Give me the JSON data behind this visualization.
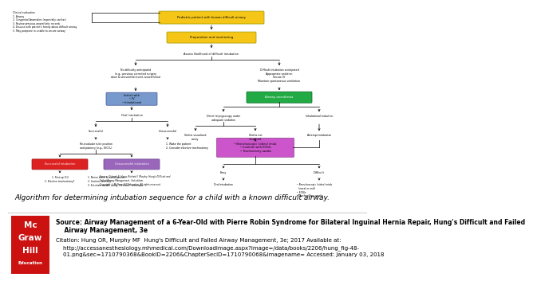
{
  "figure_caption": "Algorithm for determining intubation sequence for a child with a known difficult airway.",
  "source_text_line1": "Source: Airway Management of a 6-Year-Old with Pierre Robin Syndrome for Bilateral Inguinal Hernia Repair, Hung's Difficult and Failed",
  "source_text_line2": "    Airway Management, 3e",
  "citation_line1": "Citation: Hung OR, Murphy MF  Hung's Difficult and Failed Airway Management, 3e; 2017 Available at:",
  "citation_line2": "    http://accessanesthesiology.mhmedical.com/Downloadimage.aspx?image=/data/books/2206/hung_fig-48-",
  "citation_line3": "    01.png&sec=1710790368&BookID=2206&ChapterSecID=1710790068&imagename= Accessed: January 03, 2018",
  "bg_color": "#ffffff",
  "bottom_bg": "#f5f5f5",
  "caption_color": "#000000",
  "logo_bg": "#cc1111",
  "flowchart_yellow": "#f5c518",
  "flowchart_green": "#22aa44",
  "flowchart_blue": "#7799cc",
  "flowchart_pink": "#cc55cc",
  "flowchart_red": "#dd2222",
  "flowchart_purple": "#9966bb",
  "caption_fontsize": 6.5,
  "source_fontsize": 5.5,
  "citation_fontsize": 5.0,
  "small_text_fs": 2.6,
  "tiny_text_fs": 2.3
}
